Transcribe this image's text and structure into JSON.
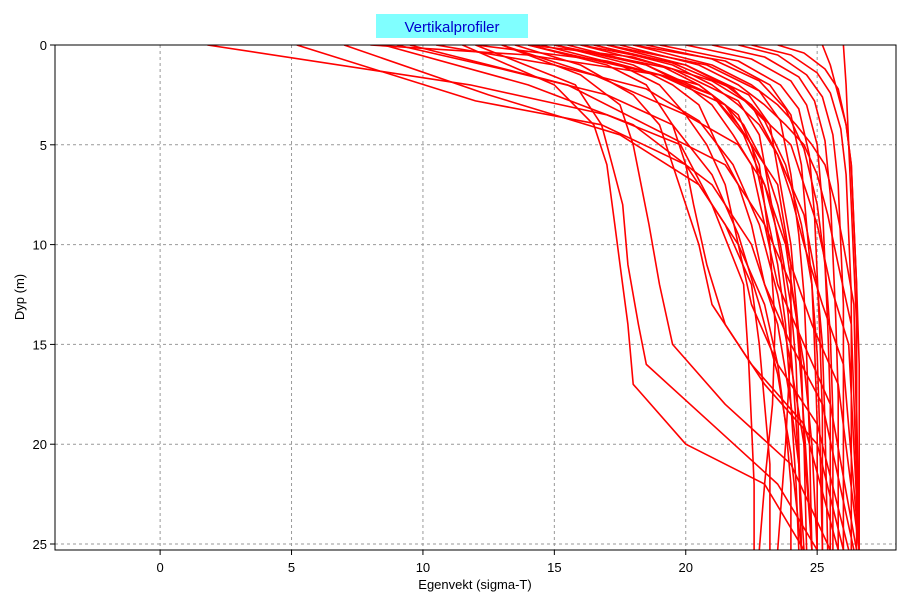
{
  "chart_data": {
    "type": "line",
    "title": "Vertikalprofiler",
    "xlabel": "Egenvekt (sigma-T)",
    "ylabel": "Dyp (m)",
    "xlim": [
      -4,
      28
    ],
    "ylim": [
      0,
      25.3
    ],
    "y_inverted": true,
    "x_ticks": [
      0,
      5,
      10,
      15,
      20,
      25
    ],
    "y_ticks": [
      0,
      5,
      10,
      15,
      20,
      25
    ],
    "grid": true,
    "colors": {
      "line": "#ff0000",
      "title_bg": "#80ffff",
      "title_text": "#0000cc",
      "grid": "#999999"
    },
    "series": [
      {
        "x": [
          1.8,
          11.8,
          17,
          19.8,
          21,
          22.2,
          22.4,
          22.5,
          22.6,
          22.6
        ],
        "y": [
          0,
          2,
          3.5,
          5,
          8,
          12,
          16,
          19,
          22,
          25.3
        ]
      },
      {
        "x": [
          5.2,
          12,
          16.8,
          20,
          21.5,
          22.5,
          22.8,
          23,
          23.2,
          23.2
        ],
        "y": [
          0,
          2.8,
          4,
          6,
          9,
          12,
          15,
          18,
          21,
          25.3
        ]
      },
      {
        "x": [
          7,
          12.5,
          17.5,
          20.5,
          22,
          23,
          23.5,
          23.8,
          24,
          24
        ],
        "y": [
          0,
          2.5,
          4.5,
          7,
          10,
          13,
          16,
          19,
          22,
          25.3
        ]
      },
      {
        "x": [
          8.5,
          14,
          18,
          21,
          22.5,
          23.5,
          24,
          24.3,
          24.5
        ],
        "y": [
          0,
          2,
          4,
          7,
          10,
          14,
          18,
          21,
          25.3
        ]
      },
      {
        "x": [
          9.5,
          15.5,
          18.5,
          21.5,
          23,
          24,
          24.5,
          24.8,
          25
        ],
        "y": [
          0,
          2,
          4,
          6,
          9,
          12,
          16,
          20,
          25.3
        ]
      },
      {
        "x": [
          11.5,
          15,
          16.5,
          17,
          17.3,
          17.5,
          17.8,
          18,
          20,
          23,
          24.5
        ],
        "y": [
          0,
          2,
          4,
          6,
          9,
          11,
          14,
          17,
          20,
          22,
          25.3
        ]
      },
      {
        "x": [
          12,
          15.8,
          16.8,
          17.2,
          17.6,
          17.8,
          18.2,
          18.5,
          21,
          23.5,
          25
        ],
        "y": [
          0,
          2,
          4,
          6,
          8,
          11,
          14,
          16,
          19,
          22,
          25.3
        ]
      },
      {
        "x": [
          13,
          16,
          17.5,
          18,
          18.3,
          18.6,
          19,
          19.5,
          21.5,
          24,
          25.5
        ],
        "y": [
          0,
          1.5,
          3,
          5,
          7,
          9,
          12,
          15,
          18,
          21,
          25.3
        ]
      },
      {
        "x": [
          13.5,
          16,
          18,
          19,
          19.5,
          20,
          20.5,
          21,
          22.5,
          24.5,
          25.8
        ],
        "y": [
          0,
          1,
          2.5,
          4,
          6,
          8,
          10,
          13,
          16,
          19,
          25.3
        ]
      },
      {
        "x": [
          14,
          17,
          18.5,
          19.5,
          20,
          20.3,
          20.8,
          21.5,
          23,
          25,
          26
        ],
        "y": [
          0,
          1,
          2,
          4,
          6,
          8,
          11,
          14,
          17,
          20,
          25.3
        ]
      },
      {
        "x": [
          14.5,
          17.5,
          19,
          20,
          20.8,
          21.5,
          22,
          22.5,
          23.5,
          25,
          26.2
        ],
        "y": [
          0,
          1,
          2,
          3.5,
          5,
          7,
          10,
          13,
          16,
          19,
          25.3
        ]
      },
      {
        "x": [
          15,
          18,
          19.5,
          20.5,
          21.2,
          22,
          22.5,
          23,
          24,
          25.2,
          26.4
        ],
        "y": [
          0,
          1,
          2,
          3,
          5,
          7,
          9,
          12,
          15,
          18,
          25.3
        ]
      },
      {
        "x": [
          15.5,
          18.5,
          20,
          21,
          21.8,
          22.5,
          23,
          23.5,
          24.5,
          25.5,
          26.5
        ],
        "y": [
          0,
          1,
          2,
          3,
          4.5,
          6,
          9,
          12,
          15,
          18,
          25.3
        ]
      },
      {
        "x": [
          16,
          19,
          20.5,
          21.5,
          22.2,
          23,
          23.5,
          24,
          24.8,
          25.8,
          26.6
        ],
        "y": [
          0,
          1,
          2,
          3,
          4,
          6,
          8,
          11,
          14,
          17,
          25.3
        ]
      },
      {
        "x": [
          16.5,
          19.5,
          21,
          22,
          22.8,
          23.5,
          24,
          24.5,
          25.2,
          26,
          26.6
        ],
        "y": [
          0,
          1,
          2,
          3,
          4,
          5.5,
          7.5,
          10,
          13,
          16,
          25.3
        ]
      },
      {
        "x": [
          17,
          20,
          21.5,
          22.5,
          23.2,
          24,
          24.5,
          25,
          25.5,
          26.2,
          26.6
        ],
        "y": [
          0,
          1,
          2,
          3,
          4,
          5,
          7,
          9,
          12,
          15,
          25.3
        ]
      },
      {
        "x": [
          17.5,
          20.5,
          22,
          23,
          23.8,
          24.5,
          25,
          25.4,
          25.8,
          26.3,
          26.6
        ],
        "y": [
          0,
          1,
          2,
          3,
          4,
          5,
          6.5,
          8.5,
          11,
          14,
          25.3
        ]
      },
      {
        "x": [
          18,
          21,
          22.5,
          23.5,
          24.2,
          24.8,
          25.3,
          25.7,
          26,
          26.4,
          26.6
        ],
        "y": [
          0,
          1,
          2,
          3,
          4,
          5,
          6,
          8,
          10,
          13,
          25.3
        ]
      },
      {
        "x": [
          14,
          19,
          21.5,
          22.5,
          23,
          23.5,
          23.8,
          24,
          24.2,
          24.3
        ],
        "y": [
          0,
          1.5,
          3,
          5,
          8,
          11,
          14,
          18,
          22,
          25.3
        ]
      },
      {
        "x": [
          15,
          19.5,
          22,
          22.8,
          23.2,
          23.6,
          23.9,
          24.1,
          24.3,
          24.4
        ],
        "y": [
          0,
          1.2,
          2.8,
          4.5,
          7.5,
          10.5,
          13.5,
          17,
          21,
          25.3
        ]
      },
      {
        "x": [
          16,
          20,
          22.4,
          23.2,
          23.6,
          24,
          24.2,
          24.4,
          24.5,
          24.6
        ],
        "y": [
          0,
          1,
          2.5,
          4,
          7,
          10,
          13,
          16,
          20,
          25.3
        ]
      },
      {
        "x": [
          17,
          20.8,
          22.8,
          23.6,
          24,
          24.3,
          24.5,
          24.6,
          24.7,
          24.8
        ],
        "y": [
          0,
          1,
          2.3,
          3.8,
          6.5,
          9.5,
          12.5,
          15.5,
          19.5,
          25.3
        ]
      },
      {
        "x": [
          18,
          21.5,
          23.2,
          24,
          24.4,
          24.6,
          24.8,
          24.9,
          25,
          25
        ],
        "y": [
          0,
          0.8,
          2,
          3.5,
          6,
          9,
          12,
          15,
          19,
          25.3
        ]
      },
      {
        "x": [
          19,
          22,
          23.6,
          24.3,
          24.7,
          24.9,
          25,
          25.1,
          25.2,
          25.2
        ],
        "y": [
          0,
          0.8,
          2,
          3.2,
          5.5,
          8.5,
          11.5,
          14.5,
          18.5,
          25.3
        ]
      },
      {
        "x": [
          20,
          22.5,
          24,
          24.6,
          25,
          25.2,
          25.3,
          25.4,
          25.5,
          25.5
        ],
        "y": [
          0,
          0.7,
          1.8,
          3,
          5,
          8,
          11,
          14,
          18,
          25.3
        ]
      },
      {
        "x": [
          21,
          23,
          24.3,
          24.9,
          25.3,
          25.5,
          25.6,
          25.7,
          25.8,
          25.8
        ],
        "y": [
          0,
          0.6,
          1.6,
          2.8,
          4.8,
          7.5,
          10.5,
          13.5,
          17.5,
          25.3
        ]
      },
      {
        "x": [
          22,
          23.5,
          24.6,
          25.2,
          25.6,
          25.8,
          25.9,
          26,
          26,
          26
        ],
        "y": [
          0,
          0.5,
          1.5,
          2.6,
          4.5,
          7,
          10,
          13,
          17,
          25.3
        ]
      },
      {
        "x": [
          22.5,
          24,
          25,
          25.5,
          25.9,
          26.1,
          26.2,
          26.3,
          26.3,
          26.3
        ],
        "y": [
          0,
          0.5,
          1.4,
          2.4,
          4.2,
          6.5,
          9.5,
          12.5,
          16.5,
          25.3
        ]
      },
      {
        "x": [
          23.5,
          24.5,
          25.3,
          25.8,
          26.1,
          26.3,
          26.4,
          26.5,
          26.5,
          26.5
        ],
        "y": [
          0,
          0.4,
          1.2,
          2.2,
          4,
          6,
          9,
          12,
          16,
          25.3
        ]
      },
      {
        "x": [
          25.2,
          25.5,
          25.8,
          26.1,
          26.3,
          26.4,
          26.5,
          26.6,
          26.6
        ],
        "y": [
          0,
          1,
          2.5,
          4,
          6,
          9,
          12,
          16,
          25.3
        ]
      },
      {
        "x": [
          26,
          26.1,
          26.2,
          26.3,
          26.4,
          26.5,
          26.5,
          26.6
        ],
        "y": [
          0,
          2,
          5,
          8,
          11,
          14,
          18,
          25.3
        ]
      },
      {
        "x": [
          8,
          14,
          19,
          21,
          22,
          23.5,
          24,
          24,
          23.8,
          23.5
        ],
        "y": [
          0,
          0.5,
          1.5,
          2.5,
          4,
          7,
          11,
          15,
          20,
          25.3
        ]
      },
      {
        "x": [
          12,
          17,
          20.5,
          22,
          22.8,
          23.2,
          23.4,
          23.3,
          23,
          22.8
        ],
        "y": [
          0,
          0.8,
          2,
          3.5,
          6,
          10,
          14,
          18,
          22,
          25.3
        ]
      },
      {
        "x": [
          14,
          18,
          21,
          22.5,
          23.5,
          24.5,
          25,
          25.2,
          25.3,
          25.4
        ],
        "y": [
          0,
          0.6,
          1.8,
          3,
          5.5,
          8.5,
          12,
          15,
          19,
          25.3
        ]
      },
      {
        "x": [
          13,
          16.5,
          20,
          22,
          23,
          23.8,
          24.2,
          24.4,
          24.6,
          24.8
        ],
        "y": [
          0,
          1.5,
          3.5,
          5,
          7,
          10,
          13.5,
          17,
          21,
          25.3
        ]
      },
      {
        "x": [
          15,
          18.5,
          21,
          22.2,
          23,
          23.6,
          24,
          24.2,
          24.3,
          24.4
        ],
        "y": [
          0,
          1,
          2.5,
          4.5,
          7,
          10,
          13,
          16,
          20,
          25.3
        ]
      },
      {
        "x": [
          16.5,
          19.5,
          21.8,
          23,
          23.8,
          24.4,
          24.8,
          25,
          25.1,
          25.2
        ],
        "y": [
          0,
          0.9,
          2.2,
          3.8,
          6,
          9,
          12,
          15.5,
          19.5,
          25.3
        ]
      },
      {
        "x": [
          9,
          13,
          17,
          19.5,
          21,
          22,
          22.8,
          23.5,
          24,
          24.4
        ],
        "y": [
          0,
          1.2,
          2.5,
          4,
          6.5,
          9.5,
          13,
          16.5,
          20.5,
          25.3
        ]
      },
      {
        "x": [
          10.5,
          15,
          18.5,
          20.5,
          21.8,
          22.8,
          23.5,
          24,
          24.5,
          24.8
        ],
        "y": [
          0,
          1,
          2.2,
          3.8,
          6,
          9,
          12.5,
          16,
          20,
          25.3
        ]
      },
      {
        "x": [
          18.5,
          21,
          22.8,
          23.8,
          24.5,
          25,
          25.3,
          25.5,
          25.6,
          25.6
        ],
        "y": [
          0,
          0.7,
          1.8,
          3.2,
          5.2,
          8,
          11,
          14.5,
          18.5,
          25.3
        ]
      }
    ]
  }
}
